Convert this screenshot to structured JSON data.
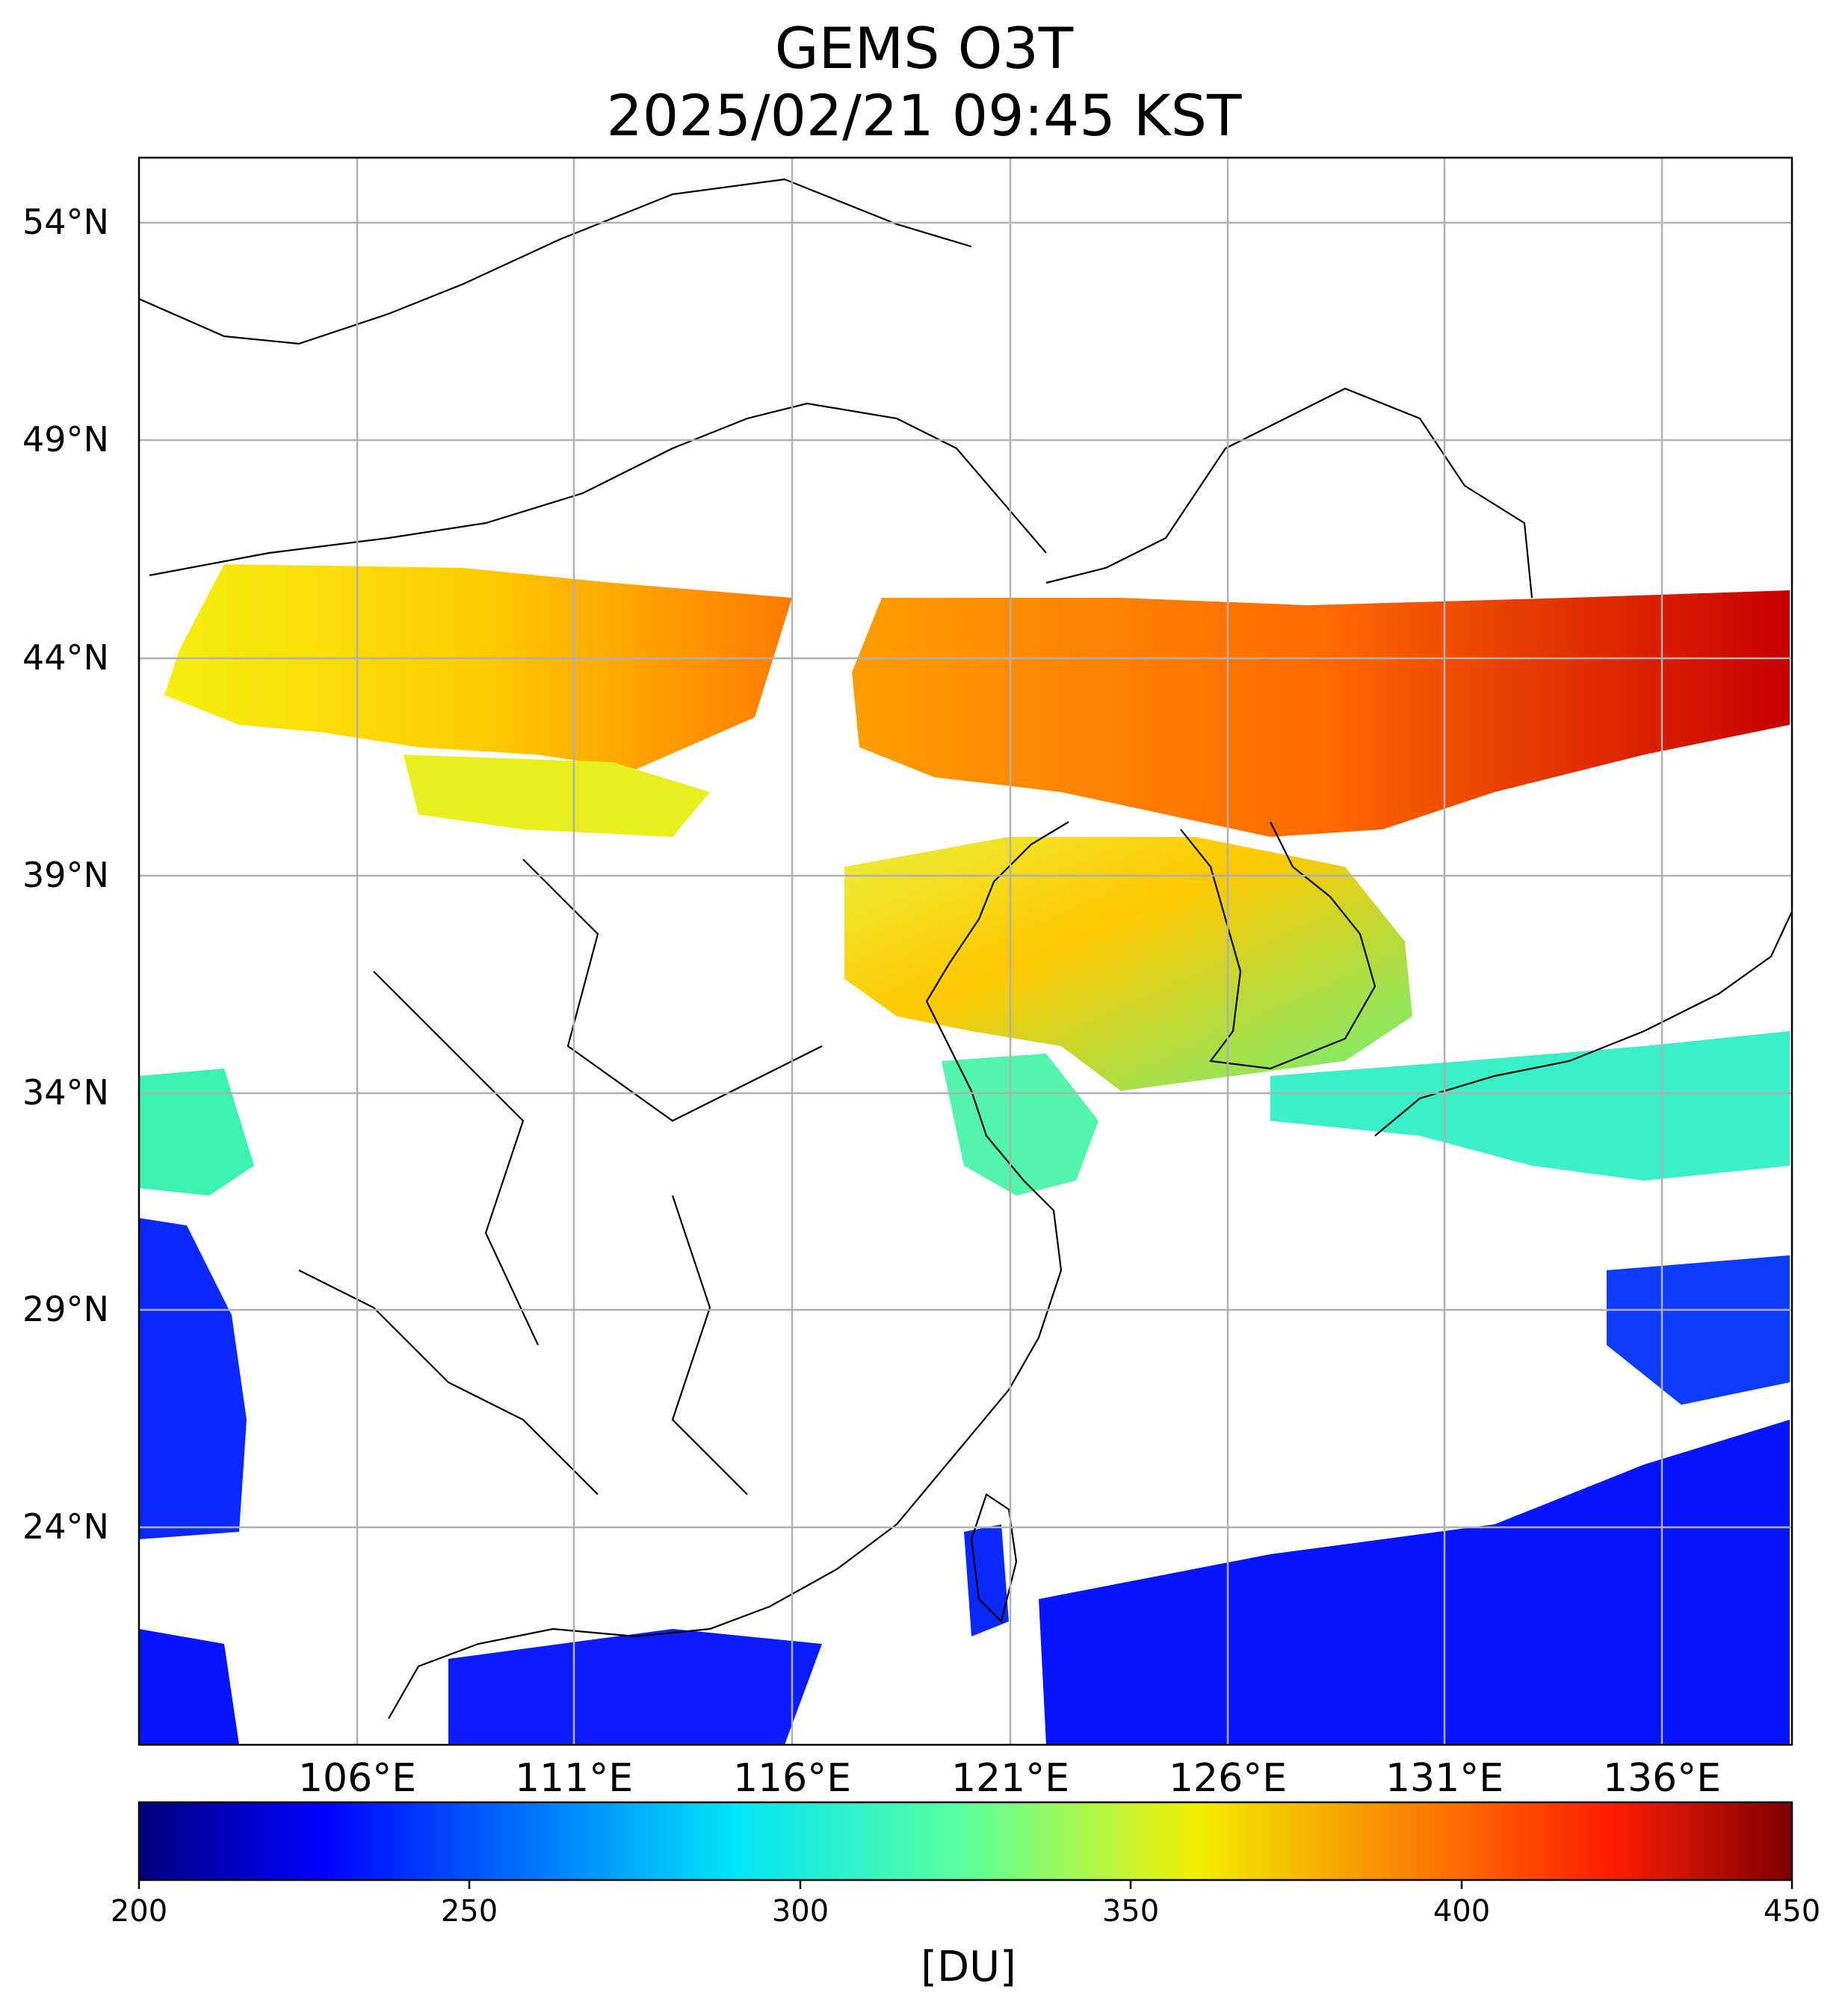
{
  "title": {
    "line1": "GEMS O3T",
    "line2": "2025/02/21 09:45 KST"
  },
  "map": {
    "lat_labels": [
      "54°N",
      "49°N",
      "44°N",
      "39°N",
      "34°N",
      "29°N",
      "24°N"
    ],
    "lon_labels": [
      "106°E",
      "111°E",
      "116°E",
      "121°E",
      "126°E",
      "131°E",
      "136°E"
    ],
    "lat_range": [
      19.5,
      56
    ],
    "lon_range": [
      101,
      139
    ],
    "grid": true,
    "background_color": "#ffffff",
    "coastline_color": "#000000"
  },
  "colorbar": {
    "ticks": [
      "200",
      "250",
      "300",
      "350",
      "400",
      "450"
    ],
    "unit": "[DU]",
    "range": [
      200,
      450
    ],
    "colormap": "jet"
  }
}
